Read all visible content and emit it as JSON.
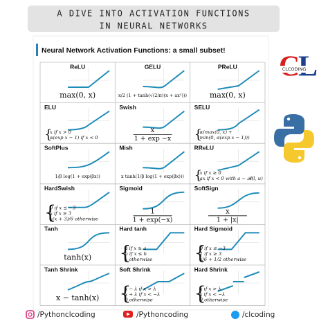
{
  "header": {
    "title": [
      "A DIVE INTO ACTIVATION FUNCTIONS",
      "IN NEURAL NETWORKS"
    ]
  },
  "heading": "Neural Network Activation Functions: a small subset!",
  "logo": "CLCODING",
  "grid": {
    "cells": [
      {
        "name": "ReLU",
        "formula": [
          "max(0, x)"
        ]
      },
      {
        "name": "GELU",
        "formula": [
          "x/2 (1 + tanh(√(2/π)(x + ax³)))"
        ]
      },
      {
        "name": "PReLU",
        "formula": [
          "max(0, x)"
        ]
      },
      {
        "name": "ELU",
        "formula": [
          "x if x > 0",
          "α(exp x − 1) if x < 0"
        ]
      },
      {
        "name": "Swish",
        "formula": {
          "numerator": "x",
          "denominator": "1 + exp −x"
        }
      },
      {
        "name": "SELU",
        "formula": [
          "α(max(0, x) +",
          "min(0, α(exp x − 1)))"
        ]
      },
      {
        "name": "SoftPlus",
        "formula": [
          "1/β log(1 + exp(βx))"
        ]
      },
      {
        "name": "Mish",
        "formula": [
          "x tanh(1/β log(1 + exp(βx)))"
        ]
      },
      {
        "name": "RReLU",
        "formula": [
          "x if x ≥ 0",
          "ax if x < 0 with a ~ 𝓡(l, u)"
        ]
      },
      {
        "name": "HardSwish",
        "formula": [
          "0 if x ≤ −3",
          "x if x ≥ 3",
          "x(x + 3)/6 otherwise"
        ]
      },
      {
        "name": "Sigmoid",
        "formula": {
          "numerator": "1",
          "denominator": "1 + exp(−x)"
        }
      },
      {
        "name": "SoftSign",
        "formula": {
          "numerator": "x",
          "denominator": "1 + |x|"
        }
      },
      {
        "name": "Tanh",
        "formula": [
          "tanh(x)"
        ]
      },
      {
        "name": "Hard tanh",
        "formula": [
          "a if x ≥ a",
          "b if x ≤ b",
          "x otherwise"
        ]
      },
      {
        "name": "Hard Sigmoid",
        "formula": [
          "0 if x ≤ −3",
          "1 if x ≥ 3",
          "x/6 + 1/2 otherwise"
        ]
      },
      {
        "name": "Tanh Shrink",
        "formula": [
          "x − tanh(x)"
        ]
      },
      {
        "name": "Soft Shrink",
        "formula": [
          "x − λ if x > λ",
          "x + λ if x < −λ",
          "0 otherwise"
        ]
      },
      {
        "name": "Hard Shrink",
        "formula": [
          "x if x > λ",
          "x if x < −λ",
          "0 otherwise"
        ]
      }
    ]
  },
  "footer": {
    "instagram": "/Pythonclcoding",
    "youtube": "/Pythoncoding",
    "twitter": "/clcoding"
  }
}
